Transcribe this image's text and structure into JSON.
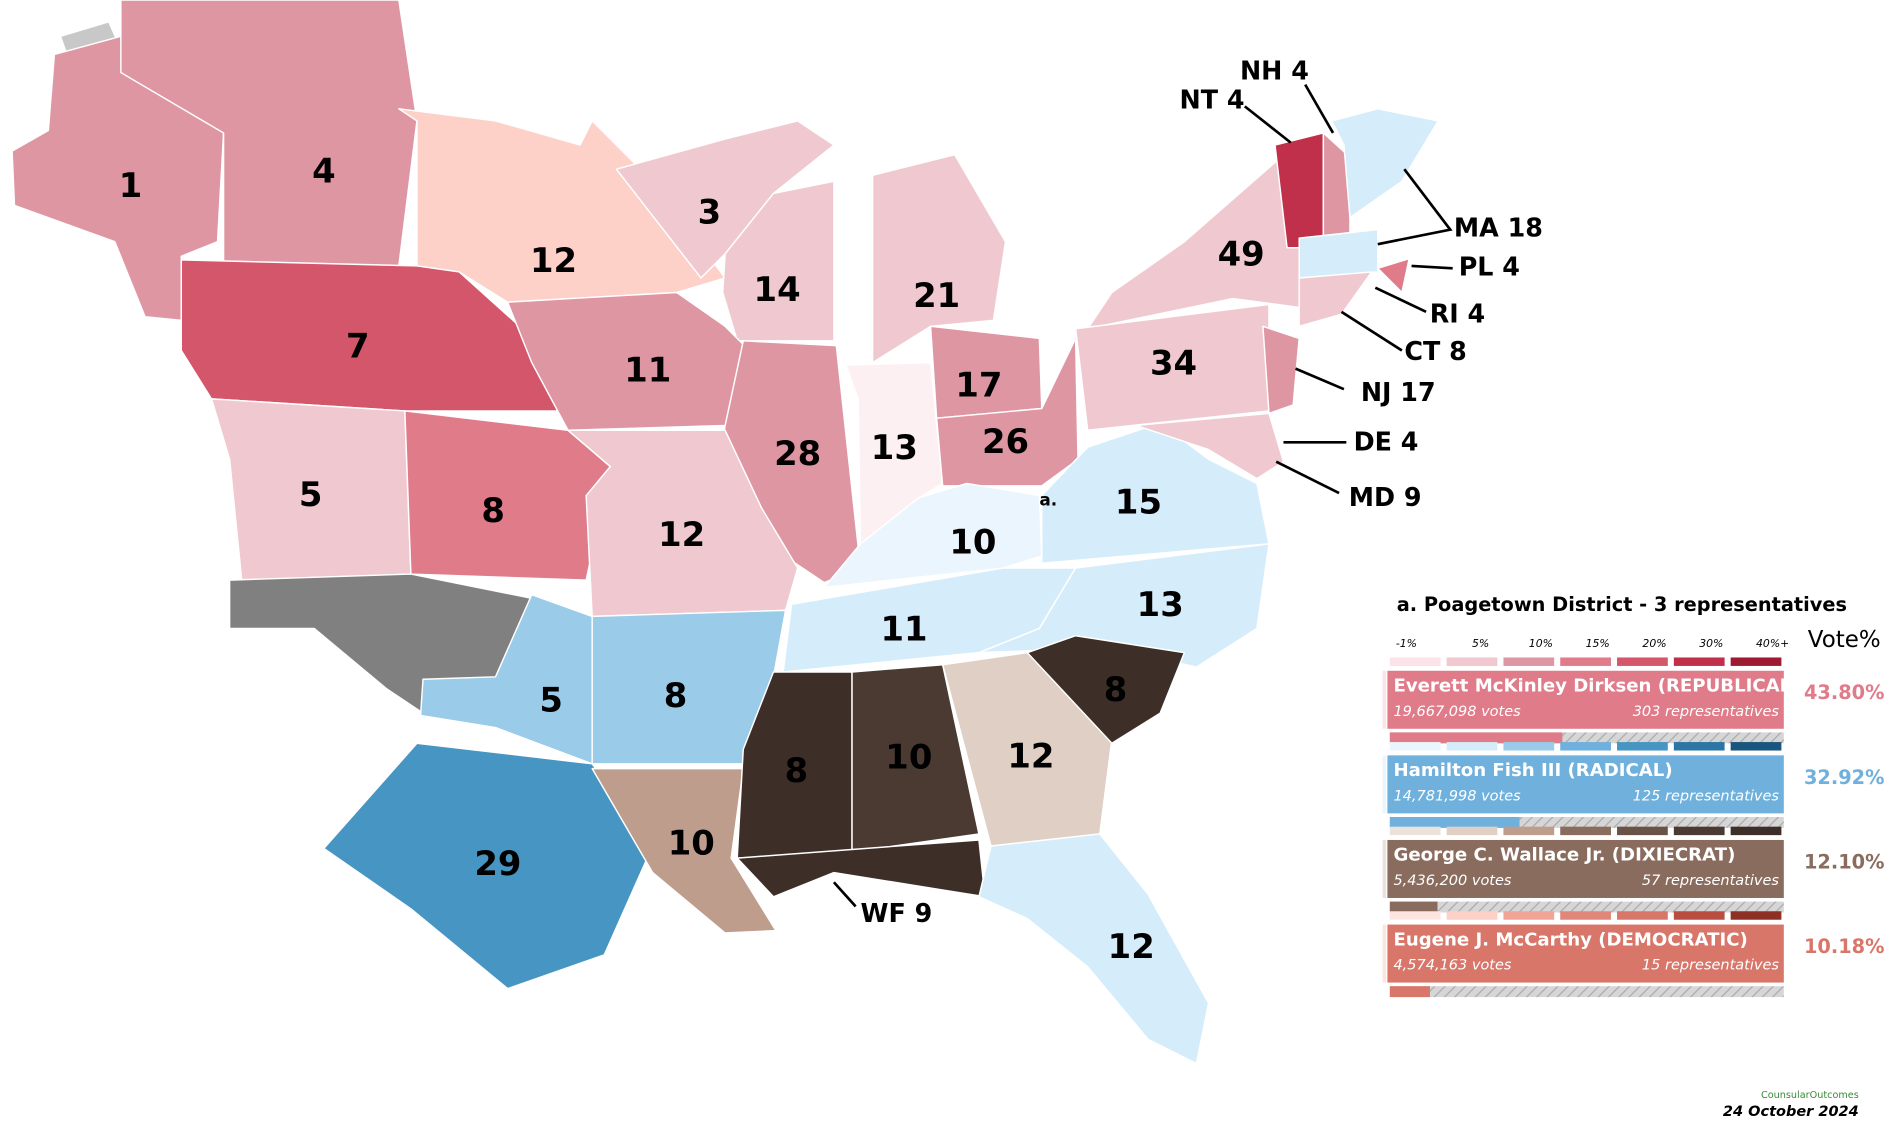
{
  "map": {
    "regions": [
      {
        "label": "1"
      },
      {
        "label": "4"
      },
      {
        "label": "12"
      },
      {
        "label": "7"
      },
      {
        "label": "3"
      },
      {
        "label": "14"
      },
      {
        "label": "21"
      },
      {
        "label": "11"
      },
      {
        "label": "28"
      },
      {
        "label": "13"
      },
      {
        "label": "17"
      },
      {
        "label": "26"
      },
      {
        "label": "5"
      },
      {
        "label": "8"
      },
      {
        "label": "12"
      },
      {
        "label": "10"
      },
      {
        "label": "15"
      },
      {
        "label": "11"
      },
      {
        "label": "13"
      },
      {
        "label": "5"
      },
      {
        "label": "8"
      },
      {
        "label": "29"
      },
      {
        "label": "10"
      },
      {
        "label": "8"
      },
      {
        "label": "10"
      },
      {
        "label": "12"
      },
      {
        "label": "8"
      },
      {
        "label": "12"
      },
      {
        "label": "49"
      },
      {
        "label": "34"
      },
      {
        "label": "NT 4"
      },
      {
        "label": "NH 4"
      },
      {
        "label": "MA 18"
      },
      {
        "label": "PL 4"
      },
      {
        "label": "RI 4"
      },
      {
        "label": "CT 8"
      },
      {
        "label": "NJ 17"
      },
      {
        "label": "DE 4"
      },
      {
        "label": "MD 9"
      },
      {
        "label": "WF 9"
      }
    ],
    "district_marker": "a."
  },
  "legend": {
    "district_note": "a. Poagetown District - 3 representatives",
    "scale": [
      "-1%",
      "5%",
      "10%",
      "15%",
      "20%",
      "30%",
      "40%+"
    ],
    "header": "Vote%",
    "candidates": [
      {
        "name": "Everett McKinley Dirksen (REPUBLICAN)",
        "votes": "19,667,098 votes",
        "representatives": "303 representatives",
        "vote_share": 43.8,
        "vote_share_label": "43.80%"
      },
      {
        "name": "Hamilton Fish III (RADICAL)",
        "votes": "14,781,998 votes",
        "representatives": "125 representatives",
        "vote_share": 32.92,
        "vote_share_label": "32.92%"
      },
      {
        "name": "George C. Wallace Jr. (DIXIECRAT)",
        "votes": "5,436,200 votes",
        "representatives": "57 representatives",
        "vote_share": 12.1,
        "vote_share_label": "12.10%"
      },
      {
        "name": "Eugene J. McCarthy (DEMOCRATIC)",
        "votes": "4,574,163 votes",
        "representatives": "15 representatives",
        "vote_share": 10.18,
        "vote_share_label": "10.18%"
      }
    ]
  },
  "footer": {
    "brand": "CounsularOutcomes",
    "date": "24 October  2024"
  }
}
